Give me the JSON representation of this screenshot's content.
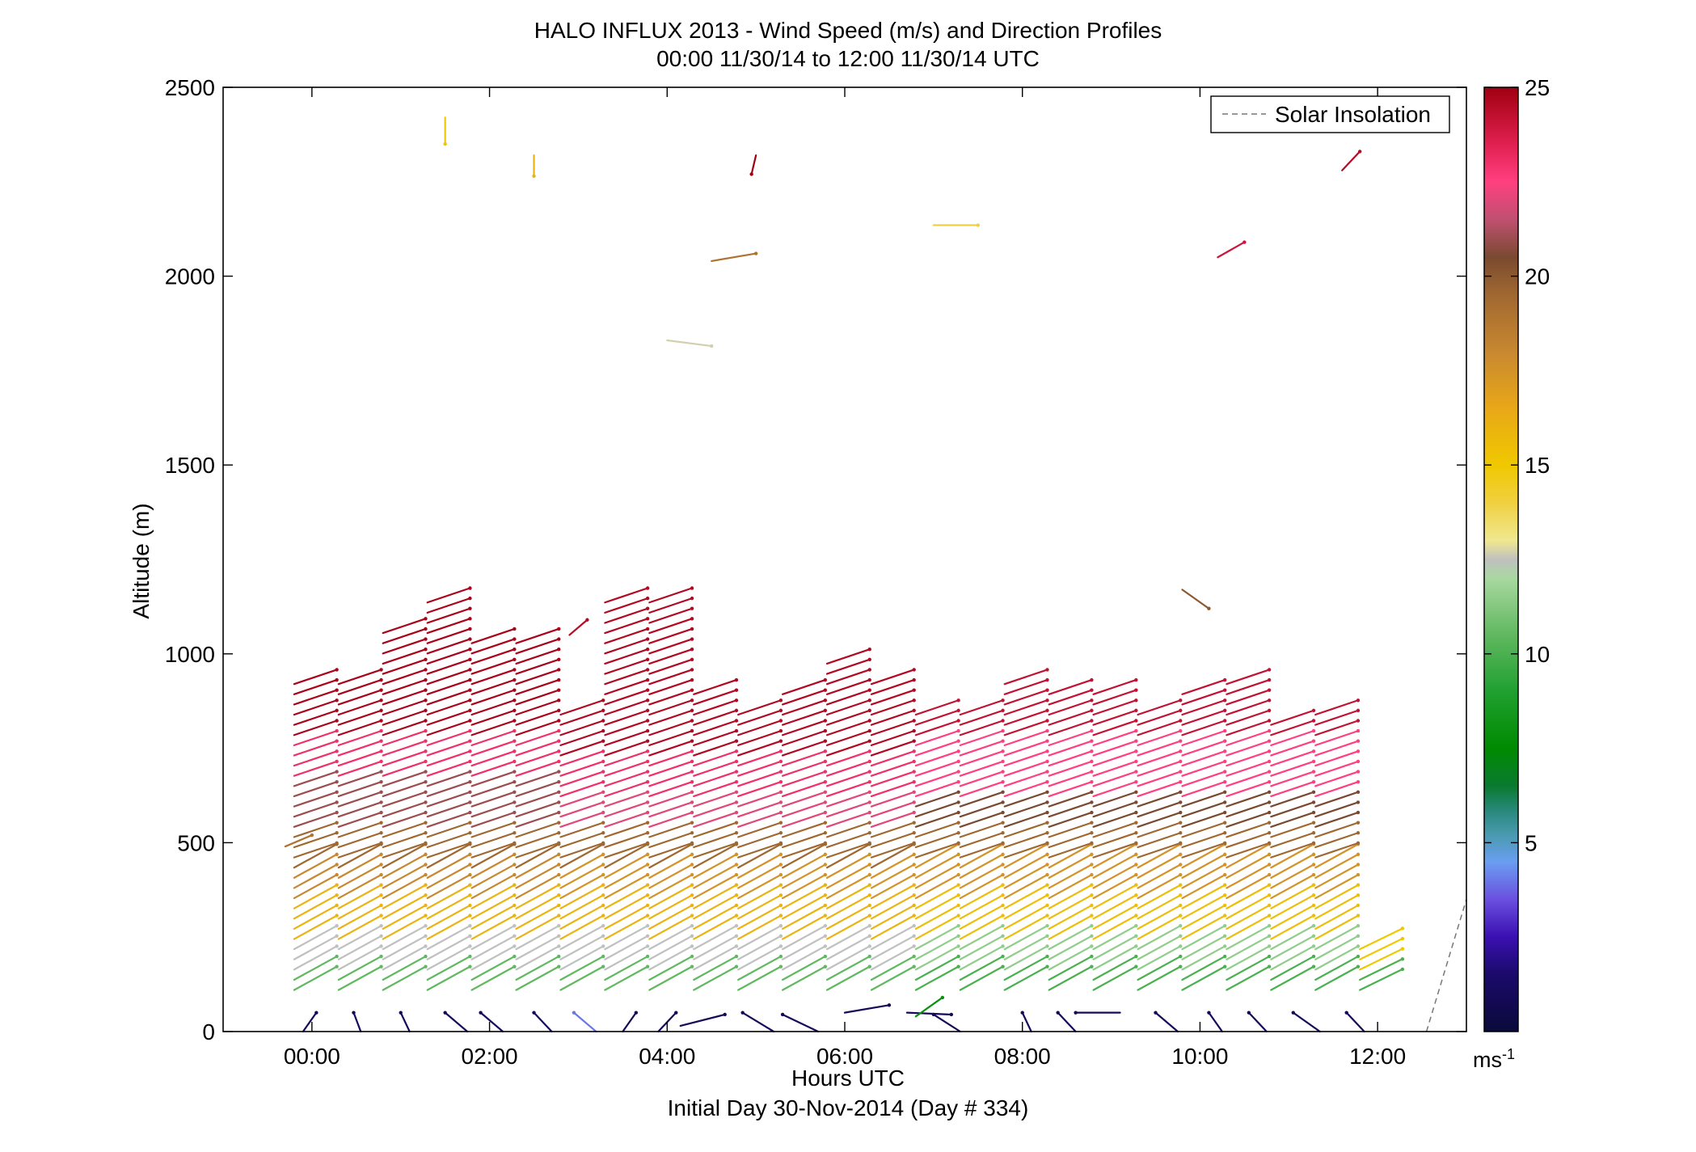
{
  "title": {
    "line1": "HALO INFLUX 2013 - Wind Speed (m/s) and Direction Profiles",
    "line2": "00:00 11/30/14 to 12:00 11/30/14  UTC"
  },
  "chart_data": {
    "type": "wind-barb profile (vector field)",
    "xlabel": "Hours UTC",
    "ylabel": "Altitude (m)",
    "footnote": "Initial Day 30-Nov-2014 (Day # 334)",
    "x_ticks": [
      "00:00",
      "02:00",
      "04:00",
      "06:00",
      "08:00",
      "10:00",
      "12:00"
    ],
    "x_tick_values": [
      0,
      2,
      4,
      6,
      8,
      10,
      12
    ],
    "xlim": [
      -1,
      13
    ],
    "y_ticks": [
      0,
      500,
      1000,
      1500,
      2000,
      2500
    ],
    "ylim": [
      0,
      2500
    ],
    "grid": false,
    "legend": {
      "placement": "top-right",
      "entries": [
        {
          "label": "Solar Insolation",
          "style": "dashed gray line"
        }
      ]
    },
    "solar_insolation": {
      "x": [
        12.55,
        13.0
      ],
      "y": [
        0,
        350
      ]
    },
    "colorbar": {
      "unit_base": "ms",
      "unit_exp": "-1",
      "ticks": [
        5,
        10,
        15,
        20,
        25
      ],
      "range": [
        0,
        25
      ],
      "stops": [
        {
          "v": 0,
          "c": "#0a0a3a"
        },
        {
          "v": 1.5,
          "c": "#1a0a6a"
        },
        {
          "v": 2.5,
          "c": "#3a10b0"
        },
        {
          "v": 3.5,
          "c": "#6a50e0"
        },
        {
          "v": 4.5,
          "c": "#6a9ef0"
        },
        {
          "v": 5.2,
          "c": "#4a9ab0"
        },
        {
          "v": 5.8,
          "c": "#2a8a80"
        },
        {
          "v": 6.5,
          "c": "#0a7a30"
        },
        {
          "v": 7.5,
          "c": "#008a00"
        },
        {
          "v": 9,
          "c": "#20a030"
        },
        {
          "v": 10.5,
          "c": "#60b860"
        },
        {
          "v": 12,
          "c": "#a8d8a0"
        },
        {
          "v": 12.5,
          "c": "#c0c0c0"
        },
        {
          "v": 13,
          "c": "#f0e890"
        },
        {
          "v": 14,
          "c": "#f0d040"
        },
        {
          "v": 15,
          "c": "#f0c800"
        },
        {
          "v": 16.5,
          "c": "#e8a818"
        },
        {
          "v": 18,
          "c": "#c88830"
        },
        {
          "v": 19.5,
          "c": "#a06830"
        },
        {
          "v": 20.5,
          "c": "#7a4a30"
        },
        {
          "v": 21.5,
          "c": "#c05070"
        },
        {
          "v": 22.5,
          "c": "#ff4080"
        },
        {
          "v": 23.5,
          "c": "#e02050"
        },
        {
          "v": 25,
          "c": "#a00010"
        }
      ]
    },
    "profiles": [
      {
        "t": -0.2,
        "regime": "early",
        "cap": 930
      },
      {
        "t": 0.3,
        "regime": "early",
        "cap": 930
      },
      {
        "t": 0.8,
        "regime": "early",
        "cap": 1080
      },
      {
        "t": 1.3,
        "regime": "early",
        "cap": 1160
      },
      {
        "t": 1.8,
        "regime": "early",
        "cap": 1040
      },
      {
        "t": 2.3,
        "regime": "early",
        "cap": 1040
      },
      {
        "t": 2.8,
        "regime": "mid",
        "cap": 850
      },
      {
        "t": 3.3,
        "regime": "mid",
        "cap": 1160
      },
      {
        "t": 3.8,
        "regime": "mid",
        "cap": 1160
      },
      {
        "t": 4.3,
        "regime": "mid",
        "cap": 900
      },
      {
        "t": 4.8,
        "regime": "mid",
        "cap": 840
      },
      {
        "t": 5.3,
        "regime": "mid",
        "cap": 900
      },
      {
        "t": 5.8,
        "regime": "mid",
        "cap": 1000
      },
      {
        "t": 6.3,
        "regime": "mid",
        "cap": 940
      },
      {
        "t": 6.8,
        "regime": "late",
        "cap": 860
      },
      {
        "t": 7.3,
        "regime": "late",
        "cap": 860
      },
      {
        "t": 7.8,
        "regime": "late",
        "cap": 940
      },
      {
        "t": 8.3,
        "regime": "late",
        "cap": 900
      },
      {
        "t": 8.8,
        "regime": "late",
        "cap": 900
      },
      {
        "t": 9.3,
        "regime": "late",
        "cap": 860
      },
      {
        "t": 9.8,
        "regime": "late",
        "cap": 900
      },
      {
        "t": 10.3,
        "regime": "late",
        "cap": 940
      },
      {
        "t": 10.8,
        "regime": "late",
        "cap": 820
      },
      {
        "t": 11.3,
        "regime": "late",
        "cap": 860
      },
      {
        "t": 11.8,
        "regime": "short",
        "cap": 220
      }
    ],
    "isolated_vectors": [
      {
        "t": 1.5,
        "alt": 2420,
        "dt": 0.0,
        "dz": -70,
        "spd": 15
      },
      {
        "t": 2.5,
        "alt": 2320,
        "dt": 0.0,
        "dz": -55,
        "spd": 16
      },
      {
        "t": 5.0,
        "alt": 2320,
        "dt": -0.05,
        "dz": -50,
        "spd": 25
      },
      {
        "t": 4.5,
        "alt": 2040,
        "dt": 0.5,
        "dz": 20,
        "spd": 19
      },
      {
        "t": 7.0,
        "alt": 2135,
        "dt": 0.5,
        "dz": 0,
        "spd": 14
      },
      {
        "t": 4.0,
        "alt": 1830,
        "dt": 0.5,
        "dz": -15,
        "spd": 12.7
      },
      {
        "t": 10.2,
        "alt": 2050,
        "dt": 0.3,
        "dz": 40,
        "spd": 24
      },
      {
        "t": 11.6,
        "alt": 2280,
        "dt": 0.2,
        "dz": 50,
        "spd": 24.5
      },
      {
        "t": 9.8,
        "alt": 1170,
        "dt": 0.3,
        "dz": -50,
        "spd": 20
      },
      {
        "t": 2.9,
        "alt": 1050,
        "dt": 0.2,
        "dz": 40,
        "spd": 24.5
      },
      {
        "t": -0.3,
        "alt": 490,
        "dt": 0.3,
        "dz": 30,
        "spd": 19
      }
    ],
    "surface_vectors": [
      {
        "t": -0.1,
        "alt": 0,
        "dt": 0.15,
        "dz": 50,
        "spd": 1
      },
      {
        "t": 0.55,
        "alt": 0,
        "dt": -0.08,
        "dz": 50,
        "spd": 1
      },
      {
        "t": 1.1,
        "alt": 0,
        "dt": -0.1,
        "dz": 50,
        "spd": 1
      },
      {
        "t": 1.75,
        "alt": 0,
        "dt": -0.25,
        "dz": 50,
        "spd": 1
      },
      {
        "t": 2.15,
        "alt": 0,
        "dt": -0.25,
        "dz": 50,
        "spd": 1
      },
      {
        "t": 2.7,
        "alt": 0,
        "dt": -0.2,
        "dz": 50,
        "spd": 1
      },
      {
        "t": 3.2,
        "alt": 0,
        "dt": -0.25,
        "dz": 50,
        "spd": 4
      },
      {
        "t": 3.5,
        "alt": 0,
        "dt": 0.15,
        "dz": 50,
        "spd": 1
      },
      {
        "t": 3.9,
        "alt": 0,
        "dt": 0.2,
        "dz": 50,
        "spd": 1
      },
      {
        "t": 4.15,
        "alt": 15,
        "dt": 0.5,
        "dz": 30,
        "spd": 1
      },
      {
        "t": 5.2,
        "alt": 0,
        "dt": -0.35,
        "dz": 50,
        "spd": 1
      },
      {
        "t": 5.7,
        "alt": 0,
        "dt": -0.4,
        "dz": 45,
        "spd": 1
      },
      {
        "t": 6.0,
        "alt": 50,
        "dt": 0.5,
        "dz": 20,
        "spd": 1
      },
      {
        "t": 6.7,
        "alt": 50,
        "dt": 0.5,
        "dz": -5,
        "spd": 1
      },
      {
        "t": 6.8,
        "alt": 40,
        "dt": 0.3,
        "dz": 50,
        "spd": 8
      },
      {
        "t": 7.3,
        "alt": 0,
        "dt": -0.3,
        "dz": 45,
        "spd": 1
      },
      {
        "t": 8.1,
        "alt": 0,
        "dt": -0.1,
        "dz": 50,
        "spd": 1
      },
      {
        "t": 8.6,
        "alt": 0,
        "dt": -0.2,
        "dz": 50,
        "spd": 1
      },
      {
        "t": 9.1,
        "alt": 50,
        "dt": -0.5,
        "dz": 0,
        "spd": 1
      },
      {
        "t": 9.75,
        "alt": 0,
        "dt": -0.25,
        "dz": 50,
        "spd": 1
      },
      {
        "t": 10.25,
        "alt": 0,
        "dt": -0.15,
        "dz": 50,
        "spd": 1
      },
      {
        "t": 10.75,
        "alt": 0,
        "dt": -0.2,
        "dz": 50,
        "spd": 1
      },
      {
        "t": 11.35,
        "alt": 0,
        "dt": -0.3,
        "dz": 50,
        "spd": 1
      },
      {
        "t": 11.85,
        "alt": 0,
        "dt": -0.2,
        "dz": 50,
        "spd": 1
      }
    ]
  }
}
